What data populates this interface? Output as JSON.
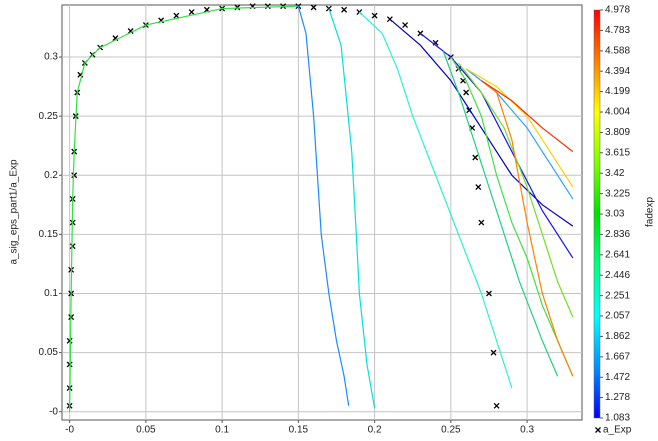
{
  "chart_data": {
    "type": "line",
    "ylabel": "a_sig_eps_part1/a_Exp",
    "xlim": [
      -0.005,
      0.336
    ],
    "ylim": [
      -0.007,
      0.344
    ],
    "xticks": [
      {
        "value": 0,
        "label": "-0"
      },
      0.05,
      0.1,
      0.15,
      0.2,
      0.25,
      0.3
    ],
    "yticks": [
      {
        "value": 0,
        "label": "-0"
      },
      0.05,
      0.1,
      0.15,
      0.2,
      0.25,
      0.3
    ],
    "grid": true,
    "legend": "lower right",
    "colorbar": {
      "label": "fadexp",
      "lim": [
        1.083,
        4.978
      ],
      "ticks": [
        4.978,
        4.783,
        4.588,
        4.394,
        4.199,
        4.004,
        3.809,
        3.615,
        3.42,
        3.225,
        3.03,
        2.836,
        2.641,
        2.446,
        2.251,
        2.057,
        1.862,
        1.667,
        1.472,
        1.278,
        1.083
      ],
      "colormap": [
        "#0000ff",
        "#0090ff",
        "#00ffff",
        "#00ff80",
        "#00e000",
        "#80ff00",
        "#ffff00",
        "#ff8000",
        "#ff0000"
      ]
    },
    "series": [
      {
        "name": "a_Exp",
        "color": "#000000",
        "marker": "x",
        "x": [
          0,
          0,
          0,
          0,
          0.001,
          0.001,
          0.001,
          0.002,
          0.002,
          0.002,
          0.003,
          0.003,
          0.004,
          0.005,
          0.007,
          0.01,
          0.015,
          0.02,
          0.03,
          0.04,
          0.05,
          0.06,
          0.07,
          0.08,
          0.09,
          0.1,
          0.11,
          0.12,
          0.13,
          0.14,
          0.15,
          0.16,
          0.17,
          0.18,
          0.19,
          0.2,
          0.21,
          0.22,
          0.23,
          0.24,
          0.25,
          0.255,
          0.258,
          0.26,
          0.262,
          0.264,
          0.266,
          0.268,
          0.27,
          0.275,
          0.278,
          0.28
        ],
        "values": [
          0.005,
          0.02,
          0.04,
          0.06,
          0.08,
          0.1,
          0.12,
          0.14,
          0.16,
          0.18,
          0.2,
          0.22,
          0.25,
          0.27,
          0.285,
          0.295,
          0.302,
          0.308,
          0.316,
          0.322,
          0.327,
          0.331,
          0.335,
          0.338,
          0.34,
          0.341,
          0.342,
          0.343,
          0.343,
          0.343,
          0.343,
          0.342,
          0.341,
          0.34,
          0.338,
          0.335,
          0.332,
          0.327,
          0.32,
          0.312,
          0.3,
          0.29,
          0.28,
          0.27,
          0.255,
          0.24,
          0.215,
          0.19,
          0.16,
          0.1,
          0.05,
          0.005
        ]
      },
      {
        "color": "#30e040",
        "x": [
          0,
          0.001,
          0.002,
          0.003,
          0.005,
          0.01,
          0.02,
          0.05,
          0.1,
          0.15
        ],
        "values": [
          0,
          0.1,
          0.18,
          0.22,
          0.27,
          0.295,
          0.308,
          0.327,
          0.341,
          0.343
        ]
      },
      {
        "color": "#1a8cff",
        "x": [
          0.15,
          0.155,
          0.16,
          0.165,
          0.17,
          0.175,
          0.18,
          0.183
        ],
        "values": [
          0.343,
          0.32,
          0.25,
          0.15,
          0.1,
          0.06,
          0.03,
          0.005
        ]
      },
      {
        "color": "#00e0e0",
        "x": [
          0.17,
          0.178,
          0.185,
          0.188,
          0.19,
          0.195,
          0.2
        ],
        "values": [
          0.341,
          0.31,
          0.22,
          0.15,
          0.1,
          0.04,
          0.003
        ]
      },
      {
        "color": "#30f0d0",
        "x": [
          0.19,
          0.205,
          0.215,
          0.225,
          0.24,
          0.255,
          0.27,
          0.28,
          0.29
        ],
        "values": [
          0.338,
          0.32,
          0.29,
          0.25,
          0.2,
          0.15,
          0.1,
          0.06,
          0.02
        ]
      },
      {
        "color": "#0000cc",
        "x": [
          0.21,
          0.23,
          0.25,
          0.27,
          0.29,
          0.31,
          0.33
        ],
        "values": [
          0.332,
          0.31,
          0.28,
          0.24,
          0.2,
          0.175,
          0.157
        ]
      },
      {
        "color": "#1010ff",
        "x": [
          0.23,
          0.25,
          0.27,
          0.29,
          0.31,
          0.33
        ],
        "values": [
          0.32,
          0.3,
          0.27,
          0.22,
          0.17,
          0.13
        ]
      },
      {
        "color": "#20d080",
        "x": [
          0.245,
          0.255,
          0.265,
          0.28,
          0.295,
          0.31,
          0.32
        ],
        "values": [
          0.305,
          0.27,
          0.23,
          0.17,
          0.11,
          0.06,
          0.03
        ]
      },
      {
        "color": "#40e040",
        "x": [
          0.25,
          0.26,
          0.27,
          0.28,
          0.29,
          0.3,
          0.31,
          0.32,
          0.33
        ],
        "values": [
          0.3,
          0.28,
          0.25,
          0.2,
          0.16,
          0.13,
          0.09,
          0.06,
          0.03
        ]
      },
      {
        "color": "#70e020",
        "x": [
          0.255,
          0.27,
          0.285,
          0.3,
          0.31,
          0.32,
          0.33
        ],
        "values": [
          0.295,
          0.27,
          0.24,
          0.19,
          0.15,
          0.11,
          0.08
        ]
      },
      {
        "color": "#30a0ff",
        "x": [
          0.26,
          0.28,
          0.3,
          0.315,
          0.33
        ],
        "values": [
          0.29,
          0.27,
          0.24,
          0.21,
          0.18
        ]
      },
      {
        "color": "#ffd000",
        "x": [
          0.26,
          0.28,
          0.3,
          0.315,
          0.33
        ],
        "values": [
          0.29,
          0.275,
          0.25,
          0.22,
          0.19
        ]
      },
      {
        "color": "#ff8000",
        "x": [
          0.27,
          0.28,
          0.29,
          0.3,
          0.31,
          0.32,
          0.33
        ],
        "values": [
          0.28,
          0.27,
          0.23,
          0.16,
          0.1,
          0.06,
          0.03
        ]
      },
      {
        "color": "#ff3000",
        "x": [
          0.27,
          0.29,
          0.31,
          0.33
        ],
        "values": [
          0.28,
          0.263,
          0.24,
          0.22
        ]
      }
    ]
  }
}
